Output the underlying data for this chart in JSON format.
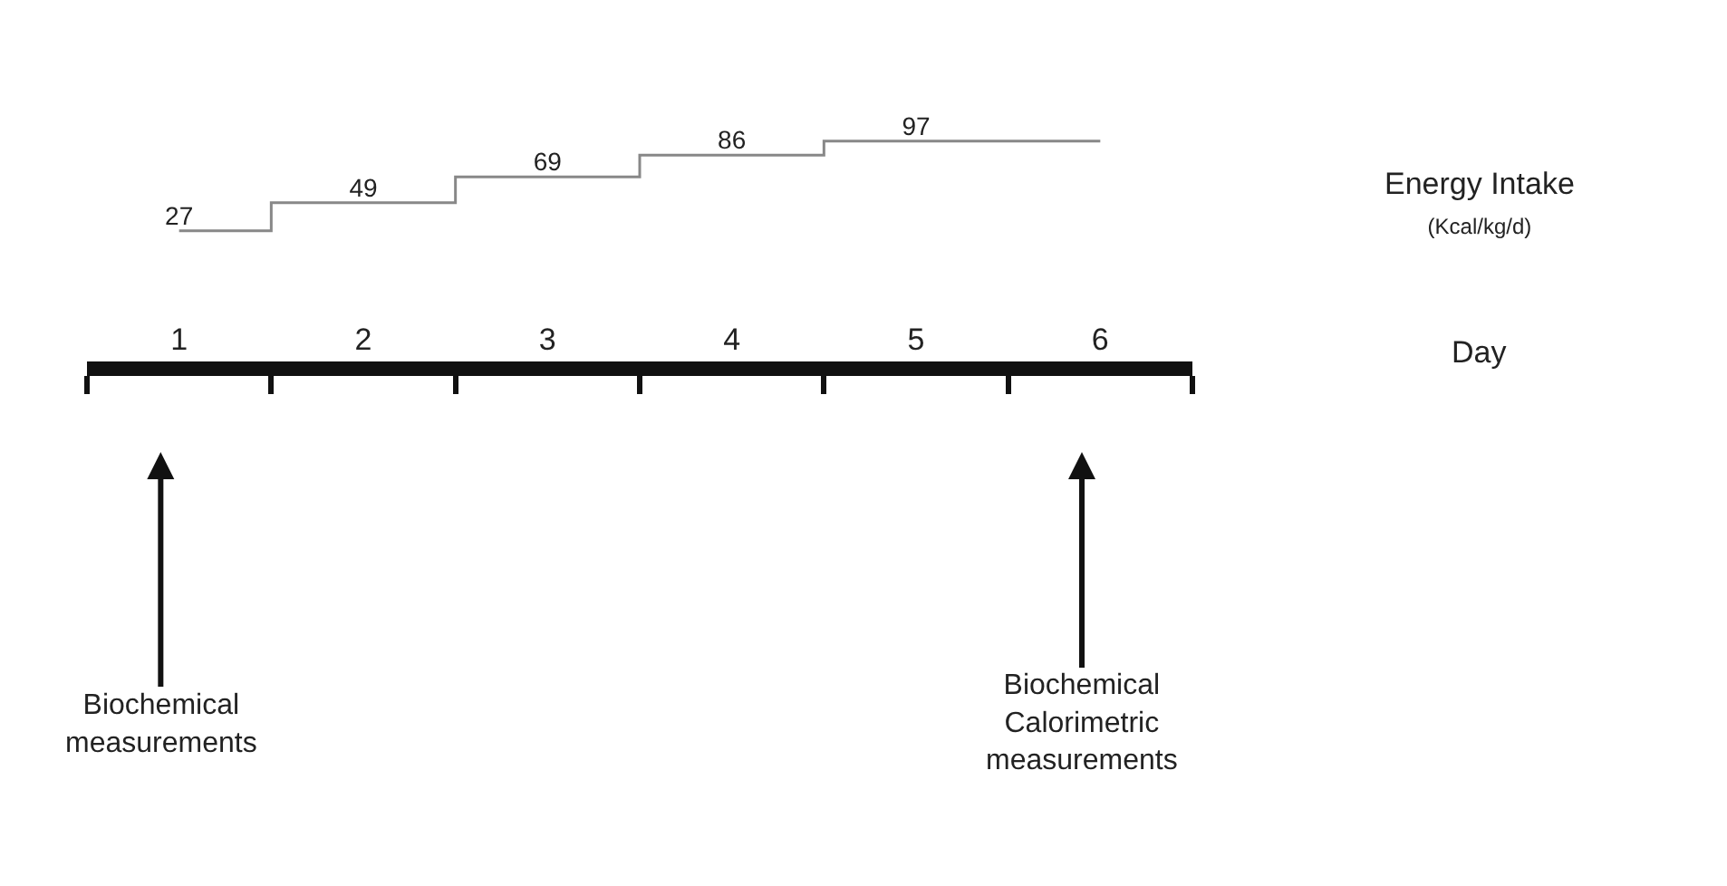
{
  "chart_data": {
    "type": "step",
    "categories": [
      "1",
      "2",
      "3",
      "4",
      "5",
      "6"
    ],
    "series": [
      {
        "color": "#888888",
        "values": [
          27,
          49,
          69,
          86,
          97,
          97
        ],
        "value_labels": [
          "27",
          "49",
          "69",
          "86",
          "97",
          null
        ]
      }
    ],
    "annotations": [
      "Energy Intake (Kcal/kg/d)",
      "Day",
      "Biochemical measurements",
      "Biochemical Calorimetric measurements"
    ],
    "tick_labels": "x"
  }
}
